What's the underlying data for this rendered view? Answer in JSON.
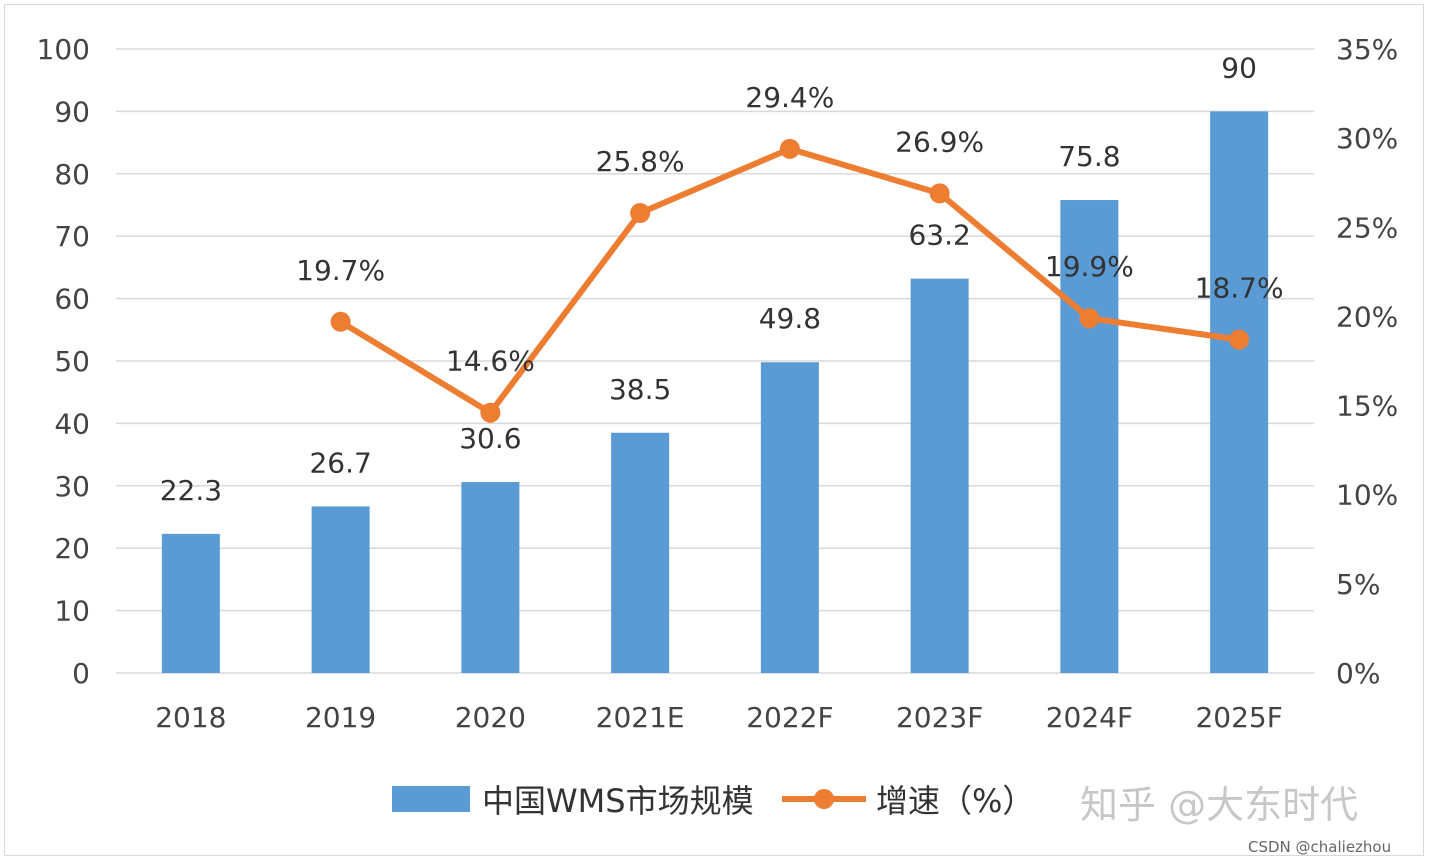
{
  "chart_data": {
    "type": "bar",
    "title": "",
    "categories": [
      "2018",
      "2019",
      "2020",
      "2021E",
      "2022F",
      "2023F",
      "2024F",
      "2025F"
    ],
    "series": [
      {
        "name": "中国WMS市场规模",
        "type": "bar",
        "axis": "left",
        "values": [
          22.3,
          26.7,
          30.6,
          38.5,
          49.8,
          63.2,
          75.8,
          90
        ],
        "labels": [
          "22.3",
          "26.7",
          "30.6",
          "38.5",
          "49.8",
          "63.2",
          "75.8",
          "90"
        ],
        "color": "#5b9bd5"
      },
      {
        "name": "增速（%）",
        "type": "line",
        "axis": "right",
        "values": [
          null,
          19.7,
          14.6,
          25.8,
          29.4,
          26.9,
          19.9,
          18.7
        ],
        "labels": [
          "",
          "19.7%",
          "14.6%",
          "25.8%",
          "29.4%",
          "26.9%",
          "19.9%",
          "18.7%"
        ],
        "color": "#ed7d31"
      }
    ],
    "y_left": {
      "min": 0,
      "max": 100,
      "step": 10,
      "ticks": [
        "0",
        "10",
        "20",
        "30",
        "40",
        "50",
        "60",
        "70",
        "80",
        "90",
        "100"
      ]
    },
    "y_right": {
      "min": 0,
      "max": 35,
      "step": 5,
      "ticks": [
        "0%",
        "5%",
        "10%",
        "15%",
        "20%",
        "25%",
        "30%",
        "35%"
      ]
    },
    "grid": true,
    "legend_position": "bottom"
  },
  "watermark": "知乎 @大东时代",
  "credit": "CSDN @chaliezhou",
  "colors": {
    "bar": "#5b9bd5",
    "line": "#ed7d31",
    "grid": "#d9d9d9"
  }
}
